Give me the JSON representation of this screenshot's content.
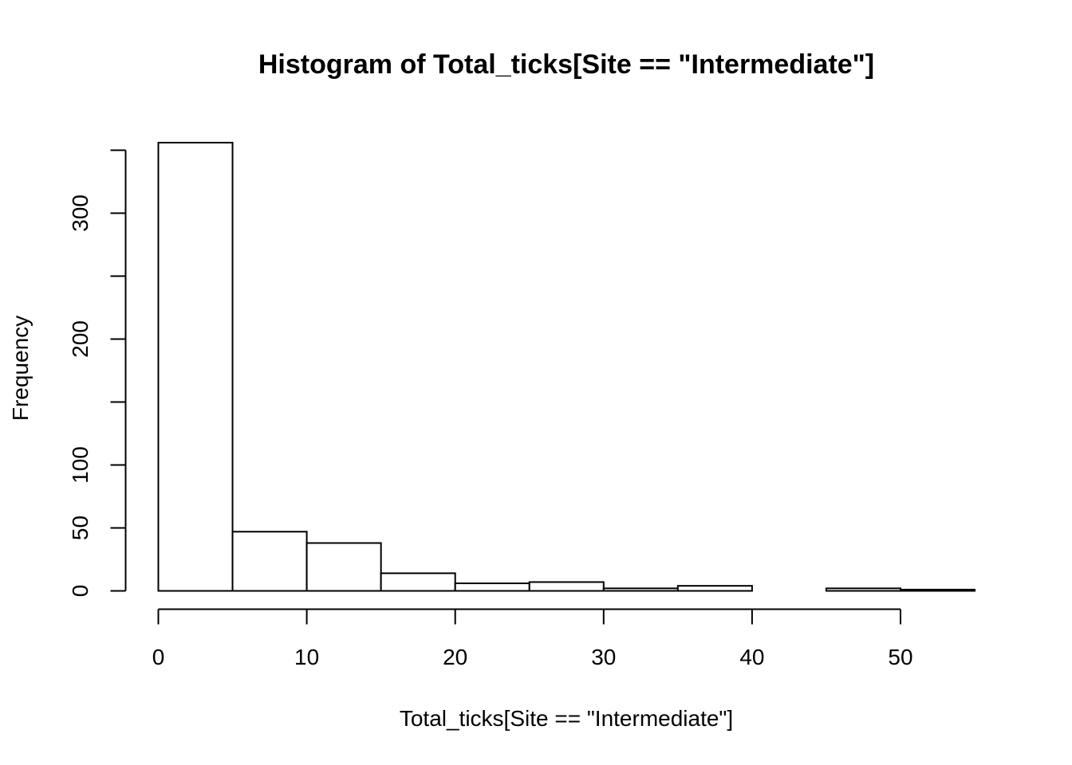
{
  "chart_data": {
    "type": "bar",
    "title": "Histogram of Total_ticks[Site == \"Intermediate\"]",
    "xlabel": "Total_ticks[Site == \"Intermediate\"]",
    "ylabel": "Frequency",
    "bins": [
      {
        "from": 0,
        "to": 5,
        "count": 356
      },
      {
        "from": 5,
        "to": 10,
        "count": 47
      },
      {
        "from": 10,
        "to": 15,
        "count": 38
      },
      {
        "from": 15,
        "to": 20,
        "count": 14
      },
      {
        "from": 20,
        "to": 25,
        "count": 6
      },
      {
        "from": 25,
        "to": 30,
        "count": 7
      },
      {
        "from": 30,
        "to": 35,
        "count": 2
      },
      {
        "from": 35,
        "to": 40,
        "count": 4
      },
      {
        "from": 40,
        "to": 45,
        "count": 0
      },
      {
        "from": 45,
        "to": 50,
        "count": 2
      },
      {
        "from": 50,
        "to": 55,
        "count": 1
      }
    ],
    "xlim": [
      0,
      55
    ],
    "ylim": [
      0,
      356
    ],
    "x_ticks": [
      0,
      10,
      20,
      30,
      40,
      50
    ],
    "y_ticks": [
      0,
      50,
      100,
      150,
      200,
      250,
      300,
      350
    ],
    "y_tick_labels": [
      "0",
      "50",
      "100",
      "",
      "200",
      "",
      "300",
      ""
    ],
    "grid": false,
    "bar_fill": "#ffffff",
    "bar_stroke": "#000000"
  }
}
